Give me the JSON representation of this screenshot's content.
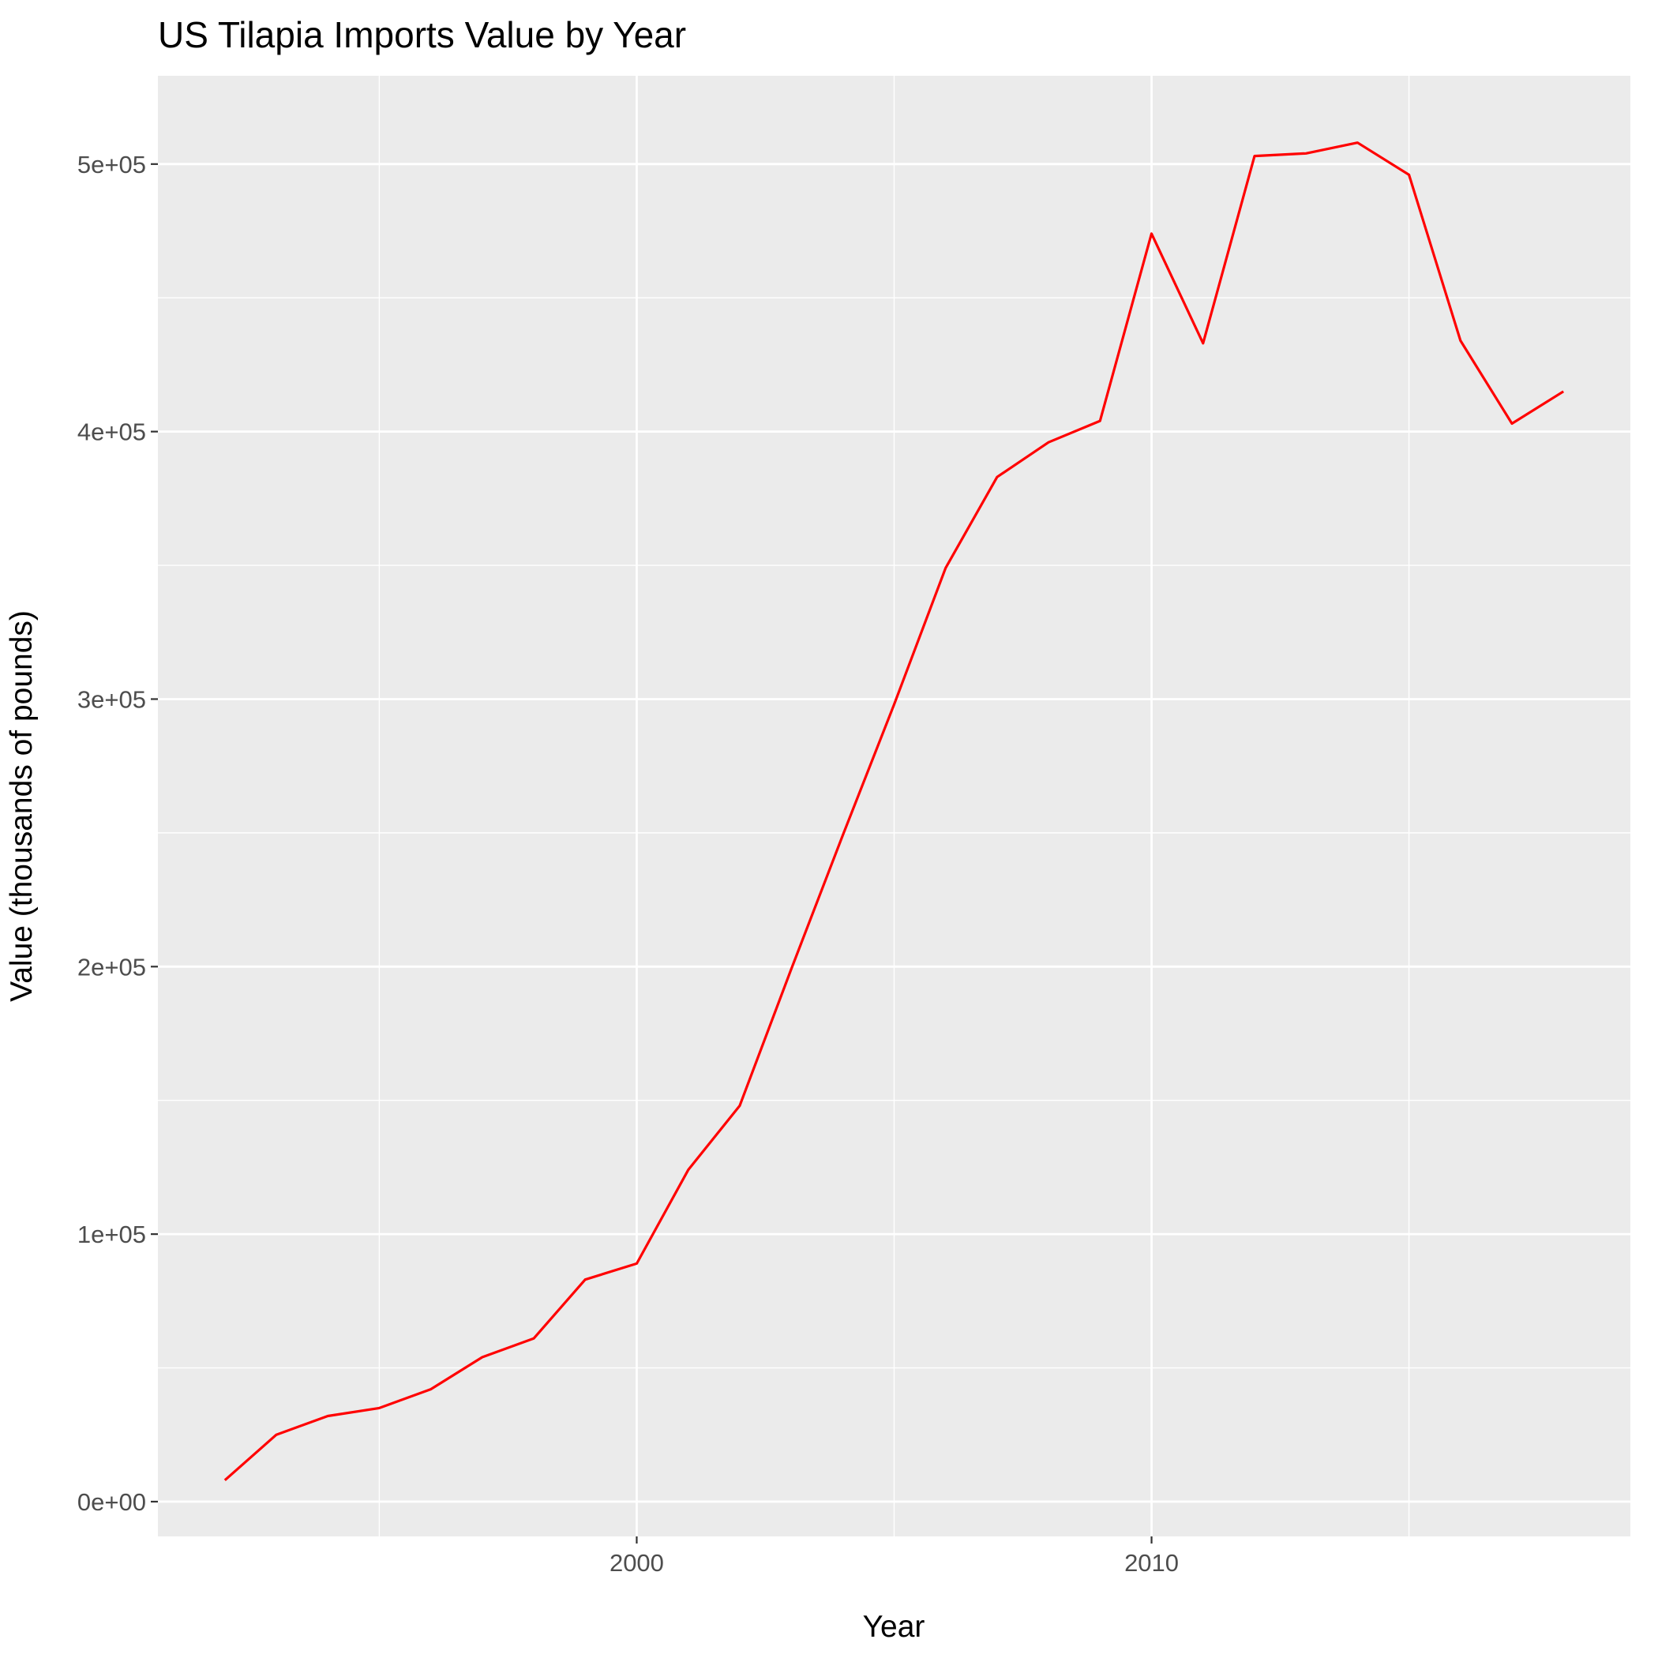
{
  "chart_data": {
    "type": "line",
    "title": "US Tilapia Imports Value by Year",
    "xlabel": "Year",
    "ylabel": "Value (thousands of pounds)",
    "xlim": [
      1990.7,
      2019.3
    ],
    "ylim": [
      -13000,
      533000
    ],
    "x_ticks": [
      1995,
      2000,
      2005,
      2010,
      2015
    ],
    "x_tick_labels": [
      "2000",
      "2010"
    ],
    "x_tick_label_values": [
      2000,
      2010
    ],
    "y_ticks": [
      0,
      100000,
      200000,
      300000,
      400000,
      500000
    ],
    "y_tick_labels": [
      "0e+00",
      "1e+05",
      "2e+05",
      "3e+05",
      "4e+05",
      "5e+05"
    ],
    "grid": true,
    "line_color": "#ff0000",
    "panel_color": "#ebebeb",
    "grid_color": "#ffffff",
    "x": [
      1992,
      1993,
      1994,
      1995,
      1996,
      1997,
      1998,
      1999,
      2000,
      2001,
      2002,
      2003,
      2004,
      2005,
      2006,
      2007,
      2008,
      2009,
      2010,
      2011,
      2012,
      2013,
      2014,
      2015,
      2016,
      2017,
      2018
    ],
    "values": [
      8000,
      25000,
      32000,
      35000,
      42000,
      54000,
      61000,
      83000,
      89000,
      124000,
      148000,
      199000,
      249000,
      298000,
      349000,
      383000,
      396000,
      404000,
      474000,
      433000,
      503000,
      504000,
      508000,
      496000,
      434000,
      403000,
      415000
    ]
  }
}
